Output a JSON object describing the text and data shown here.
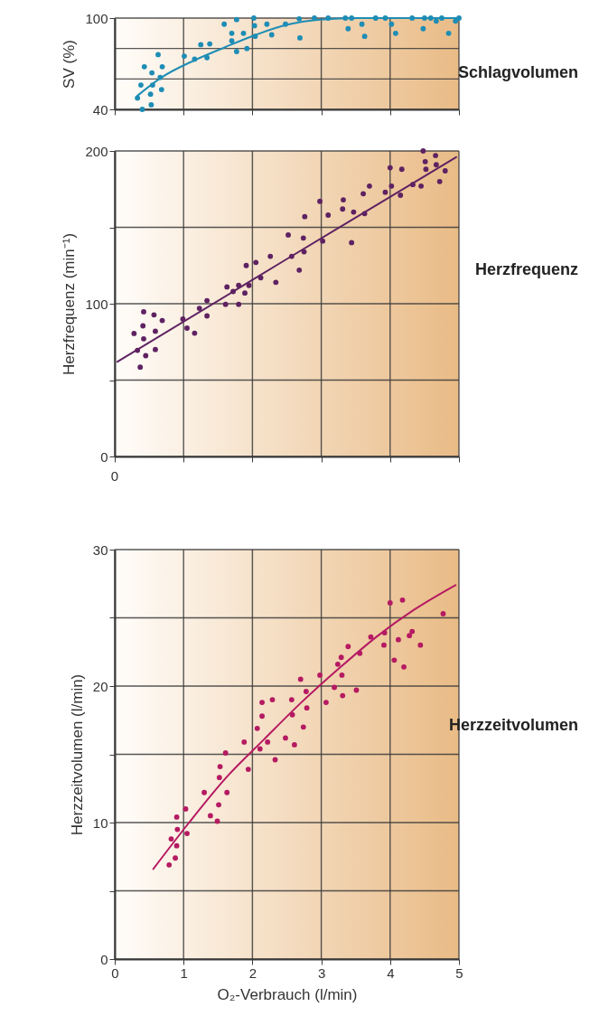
{
  "chart_data": [
    {
      "type": "scatter",
      "ylabel": "SV (%)",
      "xlim": [
        0,
        5
      ],
      "ylim": [
        40,
        100
      ],
      "xticks": [
        {
          "value": 0,
          "label": null
        },
        {
          "value": 1,
          "label": null
        },
        {
          "value": 2,
          "label": null
        },
        {
          "value": 3,
          "label": null
        },
        {
          "value": 4,
          "label": null
        },
        {
          "value": 5,
          "label": null
        }
      ],
      "yticks": [
        40,
        {
          "value": 60,
          "label": null
        },
        {
          "value": 80,
          "label": null
        },
        100
      ],
      "tick_labels": "y",
      "grid": true,
      "annotations": [
        "Schlagvolumen"
      ],
      "series": [
        {
          "type": "line",
          "color": "#1e8db5",
          "x": [
            0.33,
            0.68,
            1.17,
            1.61,
            2.05,
            2.49,
            2.98,
            3.52,
            4.34,
            5.0
          ],
          "values": [
            49,
            61,
            72.5,
            81,
            89,
            95.5,
            99,
            100,
            100,
            100
          ]
        },
        {
          "color": "#1e8db5",
          "marker": "circle",
          "x": [
            0.4,
            0.53,
            0.43,
            0.52,
            0.55,
            0.66,
            1.01,
            1.38,
            1.59,
            1.77,
            1.87,
            2.03,
            2.04,
            2.21,
            2.48,
            2.69,
            2.9,
            3.35,
            3.39,
            3.44,
            3.59,
            3.63,
            3.93,
            4.08,
            4.48,
            4.59,
            4.75,
            4.85,
            5.0
          ],
          "values": [
            40,
            43,
            68,
            50,
            56,
            61,
            75,
            83,
            96,
            78,
            90,
            95,
            88,
            96,
            96,
            87,
            100,
            100,
            93,
            100,
            96,
            88,
            100,
            90,
            93,
            100,
            100,
            90,
            100
          ]
        },
        {
          "color": "#1e8db5",
          "marker": "circle",
          "x": [
            0.33,
            0.38,
            0.54,
            0.63,
            0.69,
            0.68,
            1.16,
            1.25,
            1.34,
            1.7,
            1.7,
            1.77,
            1.92,
            2.02,
            2.28,
            2.68,
            3.1,
            3.79,
            4.02,
            4.32,
            4.5,
            4.67,
            4.95
          ],
          "values": [
            47.5,
            56,
            64,
            76,
            68,
            53,
            73,
            82.5,
            74,
            90,
            85,
            99,
            80,
            100,
            89,
            99.5,
            100,
            100,
            96,
            100,
            100,
            98,
            98
          ]
        }
      ]
    },
    {
      "type": "scatter",
      "ylabel": "Herzfrequenz (min⁻¹)",
      "xlim": [
        0,
        5
      ],
      "ylim": [
        0,
        200
      ],
      "xticks": [
        {
          "value": 0,
          "label": null
        },
        {
          "value": 1,
          "label": null
        },
        {
          "value": 2,
          "label": null
        },
        {
          "value": 3,
          "label": null
        },
        {
          "value": 4,
          "label": null
        },
        {
          "value": 5,
          "label": null
        }
      ],
      "yticks": [
        0,
        {
          "value": 50,
          "label": null
        },
        100,
        {
          "value": 150,
          "label": null
        },
        200
      ],
      "tick_labels": "y",
      "grid": true,
      "annotations": [
        "Herzfrequenz",
        "0"
      ],
      "series": [
        {
          "type": "line",
          "color": "#5e2262",
          "x": [
            0.04,
            2.49,
            4.96
          ],
          "values": [
            62,
            129,
            196
          ]
        },
        {
          "color": "#5e2262",
          "marker": "circle",
          "x": [
            0.37,
            0.33,
            0.45,
            0.41,
            0.42,
            0.59,
            0.59,
            0.99,
            1.34,
            1.61,
            1.72,
            1.8,
            1.95,
            2.05,
            2.34,
            2.52,
            2.57,
            2.75,
            3.02,
            3.1,
            3.32,
            3.31,
            3.44,
            3.47,
            3.63,
            3.61,
            3.7,
            4.15,
            4.33,
            4.48,
            4.51,
            4.66,
            4.72
          ],
          "values": [
            58.5,
            69.5,
            66,
            85.5,
            77,
            82,
            70,
            90,
            92,
            99.6,
            108,
            99.6,
            112,
            127,
            114,
            145,
            131,
            134,
            141,
            158,
            168,
            162,
            140,
            160,
            159,
            172,
            177,
            171,
            178,
            200,
            193,
            197,
            180
          ]
        },
        {
          "color": "#5e2262",
          "marker": "circle",
          "x": [
            0.28,
            0.42,
            0.57,
            0.69,
            1.05,
            1.16,
            1.23,
            1.34,
            1.63,
            1.8,
            1.89,
            1.91,
            2.12,
            2.26,
            2.68,
            2.74,
            2.76,
            2.98,
            3.93,
            4.02,
            4.0,
            4.17,
            4.45,
            4.52,
            4.67,
            4.8
          ],
          "values": [
            80.5,
            94.7,
            92.7,
            89,
            84,
            80.7,
            97,
            102,
            111,
            112,
            107,
            125,
            117,
            131,
            122,
            143,
            157,
            167,
            173,
            177,
            189,
            188,
            177,
            188,
            191,
            187
          ]
        }
      ]
    },
    {
      "type": "scatter",
      "ylabel": "Herzzeitvolumen (l/min)",
      "xlabel": "O₂-Verbrauch (l/min)",
      "xlim": [
        0,
        5
      ],
      "ylim": [
        0,
        30
      ],
      "xticks": [
        0,
        1,
        2,
        3,
        4,
        5
      ],
      "yticks": [
        0,
        {
          "value": 5,
          "label": null
        },
        10,
        {
          "value": 15,
          "label": null
        },
        20,
        {
          "value": 25,
          "label": null
        },
        30
      ],
      "grid": true,
      "annotations": [
        "Herzzeitvolumen"
      ],
      "series": [
        {
          "type": "line",
          "color": "#b51a62",
          "x": [
            0.56,
            1.08,
            1.62,
            2.17,
            2.71,
            3.26,
            3.8,
            4.35,
            4.95
          ],
          "values": [
            6.6,
            10.0,
            13.3,
            16.1,
            18.8,
            21.3,
            23.6,
            25.6,
            27.4
          ]
        },
        {
          "color": "#b51a62",
          "marker": "circle",
          "x": [
            0.79,
            0.9,
            1.52,
            1.51,
            1.39,
            1.63,
            2.07,
            2.11,
            2.33,
            2.58,
            2.61,
            2.74,
            2.78,
            2.98,
            3.07,
            3.19,
            3.24,
            3.29,
            3.3,
            3.31,
            3.39,
            3.51,
            3.56,
            3.72,
            3.91,
            3.92,
            4.0,
            4.06,
            4.12,
            4.18,
            4.2,
            4.28,
            4.32,
            4.44,
            4.77
          ],
          "values": [
            6.9,
            8.3,
            13.3,
            11.3,
            10.5,
            12.2,
            16.9,
            15.4,
            14.6,
            17.9,
            15.7,
            17.0,
            19.6,
            20.8,
            18.8,
            19.9,
            21.6,
            22.1,
            20.8,
            19.3,
            22.9,
            19.7,
            22.4,
            23.6,
            23.0,
            23.9,
            26.1,
            21.9,
            23.4,
            26.3,
            21.4,
            23.7,
            24.0,
            23.0,
            25.3
          ]
        },
        {
          "color": "#b51a62",
          "marker": "circle",
          "x": [
            0.82,
            0.88,
            0.9,
            0.91,
            1.03,
            1.05,
            1.3,
            1.49,
            1.53,
            1.61,
            1.88,
            1.94,
            2.14,
            2.14,
            2.22,
            2.29,
            2.48,
            2.57,
            2.7,
            2.79
          ],
          "values": [
            8.8,
            7.4,
            10.4,
            9.5,
            11.0,
            9.2,
            12.2,
            10.1,
            14.1,
            15.1,
            15.9,
            13.9,
            17.8,
            18.8,
            15.9,
            19.0,
            16.2,
            19.0,
            20.5,
            18.4
          ]
        }
      ]
    }
  ]
}
